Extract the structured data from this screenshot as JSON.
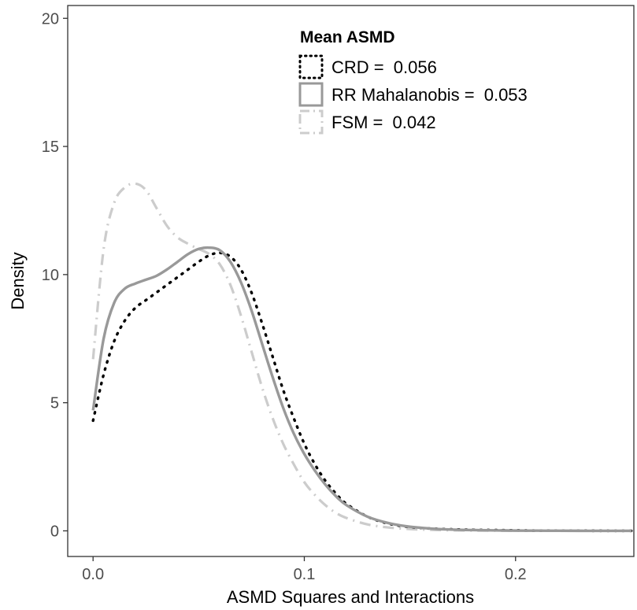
{
  "chart_data": {
    "type": "line",
    "title": "",
    "xlabel": "ASMD Squares and Interactions",
    "ylabel": "Density",
    "xlim": [
      -0.012,
      0.256
    ],
    "ylim": [
      -1.0,
      20.5
    ],
    "x_ticks": [
      0.0,
      0.1,
      0.2
    ],
    "x_tick_labels": [
      "0.0",
      "0.1",
      "0.2"
    ],
    "y_ticks": [
      0,
      5,
      10,
      15,
      20
    ],
    "y_tick_labels": [
      "0",
      "5",
      "10",
      "15",
      "20"
    ],
    "grid": false,
    "legend": {
      "title": "Mean ASMD",
      "placement": "top-center",
      "entries": [
        {
          "label": "CRD = ",
          "value": "0.056"
        },
        {
          "label": "RR Mahalanobis = ",
          "value": "0.053"
        },
        {
          "label": "FSM = ",
          "value": "0.042"
        }
      ]
    },
    "series": [
      {
        "name": "CRD",
        "color": "#000000",
        "style": "dotted",
        "x": [
          0.0,
          0.005,
          0.01,
          0.015,
          0.02,
          0.025,
          0.03,
          0.035,
          0.04,
          0.045,
          0.05,
          0.055,
          0.06,
          0.065,
          0.07,
          0.075,
          0.08,
          0.085,
          0.09,
          0.095,
          0.1,
          0.105,
          0.11,
          0.115,
          0.12,
          0.13,
          0.14,
          0.15,
          0.16,
          0.17,
          0.18,
          0.19,
          0.2,
          0.21,
          0.22,
          0.23,
          0.24,
          0.255
        ],
        "y": [
          4.3,
          6.1,
          7.4,
          8.2,
          8.7,
          9.0,
          9.3,
          9.6,
          9.9,
          10.2,
          10.5,
          10.75,
          10.85,
          10.7,
          10.2,
          9.3,
          8.1,
          6.8,
          5.5,
          4.4,
          3.4,
          2.6,
          1.95,
          1.45,
          1.05,
          0.55,
          0.28,
          0.15,
          0.09,
          0.06,
          0.04,
          0.03,
          0.02,
          0.01,
          0.005,
          0.003,
          0.002,
          0.001
        ]
      },
      {
        "name": "RR Mahalanobis",
        "color": "#999999",
        "style": "solid",
        "x": [
          0.0,
          0.005,
          0.01,
          0.015,
          0.02,
          0.025,
          0.03,
          0.035,
          0.04,
          0.045,
          0.05,
          0.055,
          0.06,
          0.065,
          0.07,
          0.075,
          0.08,
          0.085,
          0.09,
          0.095,
          0.1,
          0.105,
          0.11,
          0.115,
          0.12,
          0.13,
          0.14,
          0.15,
          0.16,
          0.17,
          0.18,
          0.19,
          0.2,
          0.21,
          0.22,
          0.23,
          0.24,
          0.255
        ],
        "y": [
          4.7,
          7.5,
          8.9,
          9.45,
          9.65,
          9.8,
          9.95,
          10.2,
          10.5,
          10.8,
          11.0,
          11.05,
          10.95,
          10.5,
          9.7,
          8.6,
          7.3,
          6.0,
          4.8,
          3.8,
          3.0,
          2.35,
          1.8,
          1.35,
          1.0,
          0.55,
          0.3,
          0.16,
          0.09,
          0.05,
          0.03,
          0.02,
          0.01,
          0.007,
          0.004,
          0.002,
          0.001,
          0.0
        ]
      },
      {
        "name": "FSM",
        "color": "#cccccc",
        "style": "dashdot",
        "x": [
          0.0,
          0.005,
          0.01,
          0.015,
          0.02,
          0.025,
          0.03,
          0.035,
          0.04,
          0.045,
          0.05,
          0.055,
          0.06,
          0.065,
          0.07,
          0.075,
          0.08,
          0.085,
          0.09,
          0.095,
          0.1,
          0.105,
          0.11,
          0.115,
          0.12,
          0.13,
          0.14,
          0.15,
          0.16,
          0.17,
          0.18,
          0.19,
          0.2,
          0.21,
          0.22,
          0.23,
          0.24,
          0.255
        ],
        "y": [
          6.7,
          11.0,
          12.8,
          13.4,
          13.55,
          13.3,
          12.6,
          11.9,
          11.45,
          11.2,
          11.0,
          10.8,
          10.4,
          9.6,
          8.4,
          7.0,
          5.6,
          4.4,
          3.4,
          2.6,
          1.9,
          1.4,
          1.0,
          0.7,
          0.5,
          0.25,
          0.13,
          0.07,
          0.04,
          0.02,
          0.01,
          0.007,
          0.004,
          0.002,
          0.001,
          0.0,
          0.0,
          0.0
        ]
      }
    ]
  }
}
